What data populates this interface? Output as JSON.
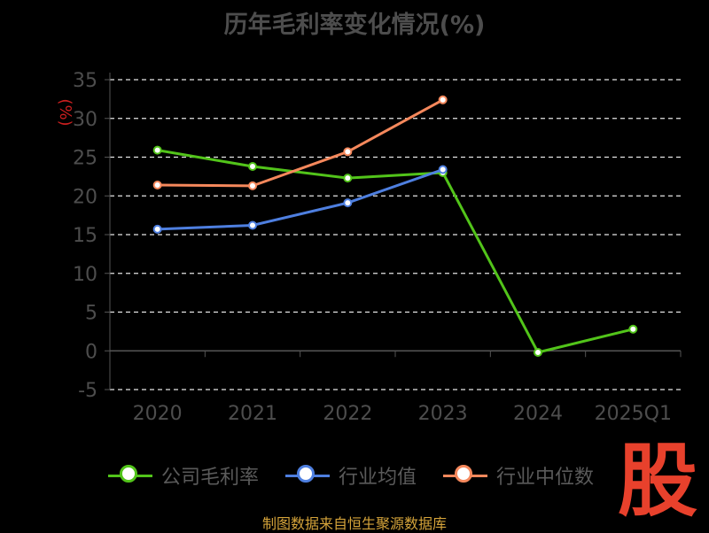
{
  "title": "历年毛利率变化情况(%)",
  "source": "制图数据来自恒生聚源数据库",
  "brand_char": "股",
  "chart_data": {
    "type": "line",
    "ylabel": "(%)",
    "ylim": [
      -5,
      35
    ],
    "yticks": [
      35,
      30,
      25,
      20,
      15,
      10,
      5,
      0,
      -5
    ],
    "categories": [
      "2020",
      "2021",
      "2022",
      "2023",
      "2024",
      "2025Q1"
    ],
    "grid": true,
    "legend_position": "bottom",
    "series": [
      {
        "name": "公司毛利率",
        "color": "#52c41a",
        "values": [
          25.9,
          23.8,
          22.3,
          23.0,
          -0.2,
          2.8
        ]
      },
      {
        "name": "行业均值",
        "color": "#4e7fe0",
        "values": [
          15.7,
          16.2,
          19.1,
          23.4,
          null,
          null
        ]
      },
      {
        "name": "行业中位数",
        "color": "#f5885c",
        "values": [
          21.4,
          21.3,
          25.7,
          32.4,
          null,
          null
        ]
      }
    ]
  }
}
